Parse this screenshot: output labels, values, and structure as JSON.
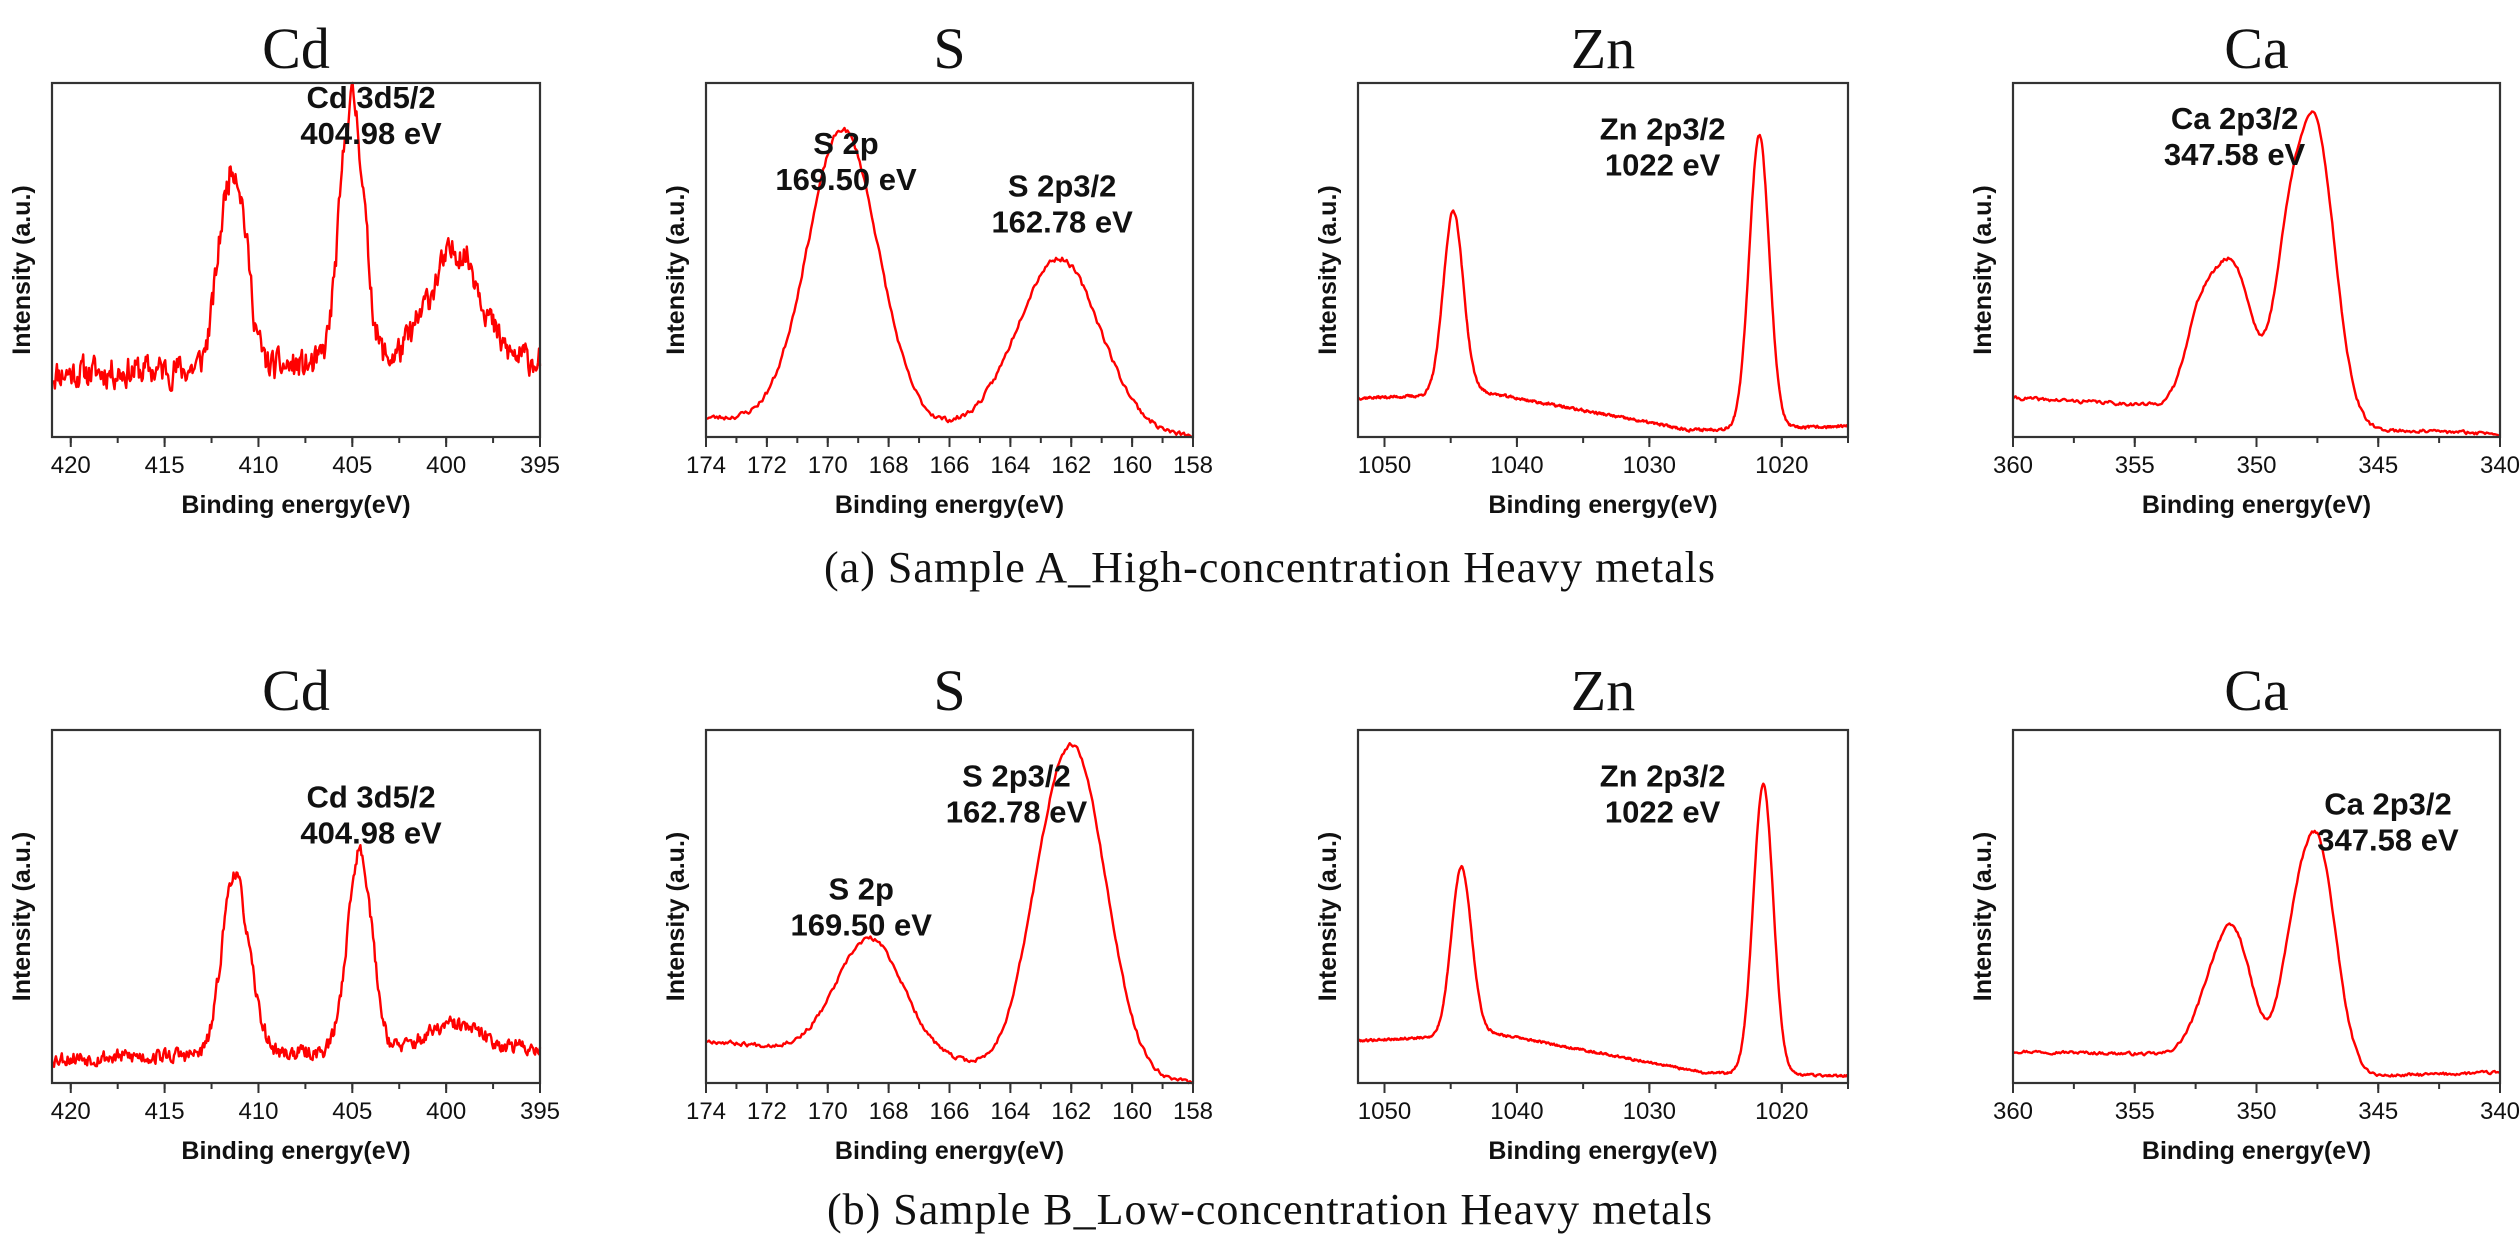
{
  "figure": {
    "captions": [
      "(a) Sample A_High-concentration Heavy metals",
      "(b) Sample B_Low-concentration Heavy metals"
    ],
    "line_color": "#ff0000"
  },
  "chart_data": [
    {
      "type": "line",
      "row": "a",
      "element": "Cd",
      "title": "Cd",
      "xlabel": "Binding energy(eV)",
      "ylabel": "Intensity (a.u.)",
      "xlim": [
        421,
        395
      ],
      "xticks": [
        420,
        415,
        410,
        405,
        400,
        395
      ],
      "minor_step": 2.5,
      "ylim": [
        0,
        1
      ],
      "yticks": [],
      "annotations": [
        {
          "lines": [
            "Cd 3d5/2",
            "404.98 eV"
          ],
          "x": 404.0,
          "y": 0.93
        }
      ],
      "baseline": [
        [
          421,
          0.18
        ],
        [
          395,
          0.22
        ]
      ],
      "peaks": [
        {
          "center": 411.8,
          "height": 0.34,
          "width": 0.55
        },
        {
          "center": 411.0,
          "height": 0.4,
          "width": 0.55
        },
        {
          "center": 405.3,
          "height": 0.45,
          "width": 0.55
        },
        {
          "center": 404.7,
          "height": 0.42,
          "width": 0.55
        },
        {
          "center": 400.0,
          "height": 0.22,
          "width": 1.3
        },
        {
          "center": 398.8,
          "height": 0.14,
          "width": 1.0
        }
      ],
      "noise": 0.07,
      "samples": 500,
      "seed": 11
    },
    {
      "type": "line",
      "row": "a",
      "element": "S",
      "title": "S",
      "xlabel": "Binding energy(eV)",
      "ylabel": "Intensity (a.u.)",
      "xlim": [
        174,
        158
      ],
      "xticks": [
        174,
        172,
        170,
        168,
        166,
        164,
        162,
        160,
        158
      ],
      "minor_step": 1,
      "ylim": [
        0,
        1
      ],
      "yticks": [],
      "annotations": [
        {
          "lines": [
            "S 2p",
            "169.50 eV"
          ],
          "x": 169.4,
          "y": 0.8
        },
        {
          "lines": [
            "S 2p3/2",
            "162.78 eV"
          ],
          "x": 162.3,
          "y": 0.68
        }
      ],
      "baseline": [
        [
          174,
          0.055
        ],
        [
          158,
          0.0
        ]
      ],
      "peaks": [
        {
          "center": 169.5,
          "height": 0.83,
          "width": 1.15
        },
        {
          "center": 162.4,
          "height": 0.49,
          "width": 1.35
        }
      ],
      "noise": 0.012,
      "samples": 320,
      "seed": 23
    },
    {
      "type": "line",
      "row": "a",
      "element": "Zn",
      "title": "Zn",
      "xlabel": "Binding energy(eV)",
      "ylabel": "Intensity (a.u.)",
      "xlim": [
        1052,
        1015
      ],
      "xticks": [
        1050,
        1040,
        1030,
        1020
      ],
      "minor_step": 5,
      "ylim": [
        0,
        1
      ],
      "yticks": [],
      "annotations": [
        {
          "lines": [
            "Zn 2p3/2",
            "1022 eV"
          ],
          "x": 1029.0,
          "y": 0.84
        }
      ],
      "baseline": [
        [
          1052,
          0.11
        ],
        [
          1044,
          0.12
        ],
        [
          1043,
          0.13
        ],
        [
          1027,
          0.02
        ],
        [
          1015,
          0.03
        ]
      ],
      "peaks": [
        {
          "center": 1044.8,
          "height": 0.52,
          "width": 0.75
        },
        {
          "center": 1021.7,
          "height": 0.83,
          "width": 0.75
        }
      ],
      "noise": 0.006,
      "samples": 700,
      "seed": 37
    },
    {
      "type": "line",
      "row": "a",
      "element": "Ca",
      "title": "Ca",
      "xlabel": "Binding energy(eV)",
      "ylabel": "Intensity (a.u.)",
      "xlim": [
        360,
        340
      ],
      "xticks": [
        360,
        355,
        350,
        345,
        340
      ],
      "minor_step": 2.5,
      "ylim": [
        0,
        1
      ],
      "yticks": [],
      "annotations": [
        {
          "lines": [
            "Ca 2p3/2",
            "347.58 eV"
          ],
          "x": 350.9,
          "y": 0.87
        }
      ],
      "baseline": [
        [
          360,
          0.11
        ],
        [
          354,
          0.09
        ],
        [
          345,
          0.02
        ],
        [
          340,
          0.01
        ]
      ],
      "peaks": [
        {
          "center": 351.0,
          "height": 0.42,
          "width": 0.85
        },
        {
          "center": 352.4,
          "height": 0.2,
          "width": 0.6
        },
        {
          "center": 347.6,
          "height": 0.84,
          "width": 0.8
        },
        {
          "center": 348.8,
          "height": 0.3,
          "width": 0.55
        }
      ],
      "noise": 0.008,
      "samples": 360,
      "seed": 41
    },
    {
      "type": "line",
      "row": "b",
      "element": "Cd",
      "title": "Cd",
      "xlabel": "Binding energy(eV)",
      "ylabel": "Intensity (a.u.)",
      "xlim": [
        421,
        395
      ],
      "xticks": [
        420,
        415,
        410,
        405,
        400,
        395
      ],
      "minor_step": 2.5,
      "ylim": [
        0,
        1
      ],
      "yticks": [],
      "annotations": [
        {
          "lines": [
            "Cd 3d5/2",
            "404.98 eV"
          ],
          "x": 404.0,
          "y": 0.78
        }
      ],
      "baseline": [
        [
          421,
          0.07
        ],
        [
          395,
          0.1
        ]
      ],
      "peaks": [
        {
          "center": 411.4,
          "height": 0.46,
          "width": 0.6
        },
        {
          "center": 410.5,
          "height": 0.15,
          "width": 0.6
        },
        {
          "center": 404.6,
          "height": 0.57,
          "width": 0.65
        },
        {
          "center": 399.6,
          "height": 0.07,
          "width": 1.4
        }
      ],
      "noise": 0.035,
      "samples": 500,
      "seed": 53
    },
    {
      "type": "line",
      "row": "b",
      "element": "S",
      "title": "S",
      "xlabel": "Binding energy(eV)",
      "ylabel": "Intensity (a.u.)",
      "xlim": [
        174,
        158
      ],
      "xticks": [
        174,
        172,
        170,
        168,
        166,
        164,
        162,
        160,
        158
      ],
      "minor_step": 1,
      "ylim": [
        0,
        1
      ],
      "yticks": [],
      "annotations": [
        {
          "lines": [
            "S 2p",
            "169.50 eV"
          ],
          "x": 168.9,
          "y": 0.52
        },
        {
          "lines": [
            "S 2p3/2",
            "162.78 eV"
          ],
          "x": 163.8,
          "y": 0.84
        }
      ],
      "baseline": [
        [
          174,
          0.12
        ],
        [
          166,
          0.06
        ],
        [
          160,
          0.02
        ],
        [
          158,
          0.0
        ]
      ],
      "peaks": [
        {
          "center": 168.6,
          "height": 0.33,
          "width": 1.1
        },
        {
          "center": 161.8,
          "height": 0.84,
          "width": 1.0
        },
        {
          "center": 163.0,
          "height": 0.22,
          "width": 0.8
        }
      ],
      "noise": 0.01,
      "samples": 320,
      "seed": 67
    },
    {
      "type": "line",
      "row": "b",
      "element": "Zn",
      "title": "Zn",
      "xlabel": "Binding energy(eV)",
      "ylabel": "Intensity (a.u.)",
      "xlim": [
        1052,
        1015
      ],
      "xticks": [
        1050,
        1040,
        1030,
        1020
      ],
      "minor_step": 5,
      "ylim": [
        0,
        1
      ],
      "yticks": [],
      "annotations": [
        {
          "lines": [
            "Zn 2p3/2",
            "1022 eV"
          ],
          "x": 1029.0,
          "y": 0.84
        }
      ],
      "baseline": [
        [
          1052,
          0.12
        ],
        [
          1046,
          0.13
        ],
        [
          1043,
          0.15
        ],
        [
          1026,
          0.03
        ],
        [
          1015,
          0.02
        ]
      ],
      "peaks": [
        {
          "center": 1044.2,
          "height": 0.47,
          "width": 0.75
        },
        {
          "center": 1021.4,
          "height": 0.82,
          "width": 0.75
        }
      ],
      "noise": 0.005,
      "samples": 700,
      "seed": 79
    },
    {
      "type": "line",
      "row": "b",
      "element": "Ca",
      "title": "Ca",
      "xlabel": "Binding energy(eV)",
      "ylabel": "Intensity (a.u.)",
      "xlim": [
        360,
        340
      ],
      "xticks": [
        360,
        355,
        350,
        345,
        340
      ],
      "minor_step": 2.5,
      "ylim": [
        0,
        1
      ],
      "yticks": [],
      "annotations": [
        {
          "lines": [
            "Ca 2p3/2",
            "347.58 eV"
          ],
          "x": 344.6,
          "y": 0.76
        }
      ],
      "baseline": [
        [
          360,
          0.09
        ],
        [
          353,
          0.08
        ],
        [
          345,
          0.02
        ],
        [
          340,
          0.03
        ]
      ],
      "peaks": [
        {
          "center": 350.9,
          "height": 0.34,
          "width": 0.75
        },
        {
          "center": 352.0,
          "height": 0.12,
          "width": 0.7
        },
        {
          "center": 347.5,
          "height": 0.64,
          "width": 0.75
        },
        {
          "center": 348.6,
          "height": 0.2,
          "width": 0.55
        }
      ],
      "noise": 0.007,
      "samples": 360,
      "seed": 97
    }
  ]
}
